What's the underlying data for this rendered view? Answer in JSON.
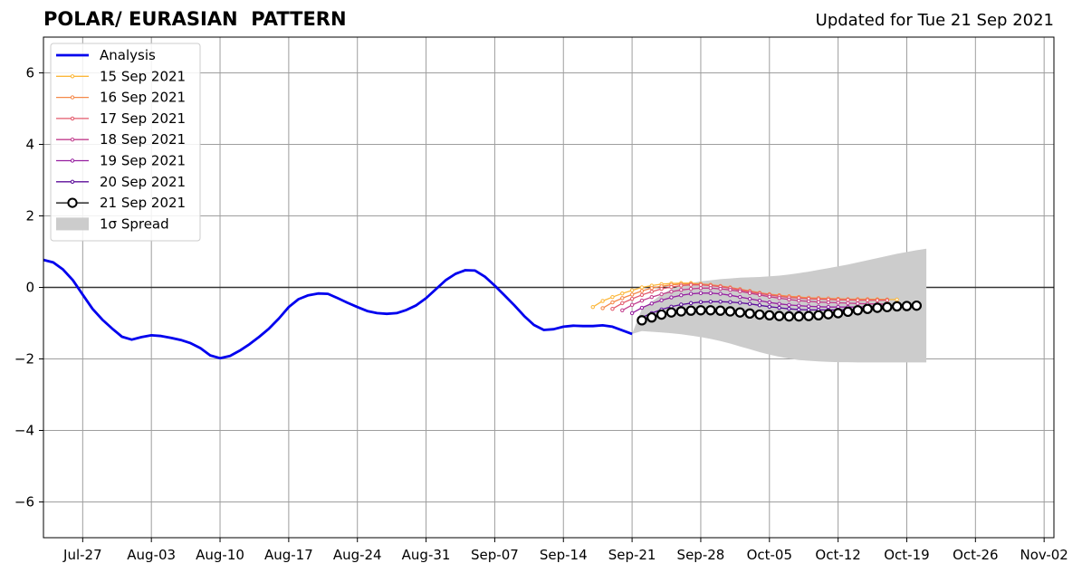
{
  "chart_data": {
    "type": "line",
    "title": "POLAR/ EURASIAN  PATTERN",
    "subtitle": "Updated for Tue 21 Sep 2021",
    "xlabel": "",
    "ylabel": "",
    "ylim": [
      -7,
      7
    ],
    "xlim": [
      "2021-07-23",
      "2021-11-03"
    ],
    "grid": true,
    "legend_position": "upper-left",
    "x_ticks": [
      "Jul-27",
      "Aug-03",
      "Aug-10",
      "Aug-17",
      "Aug-24",
      "Aug-31",
      "Sep-07",
      "Sep-14",
      "Sep-21",
      "Sep-28",
      "Oct-05",
      "Oct-12",
      "Oct-19",
      "Oct-26",
      "Nov-02"
    ],
    "y_ticks": [
      -6,
      -4,
      -2,
      0,
      2,
      4,
      6
    ],
    "series": [
      {
        "name": "Analysis",
        "color": "#0000ee",
        "style": "thick-line",
        "start_date": "2021-07-23",
        "values": [
          0.77,
          0.7,
          0.5,
          0.2,
          -0.2,
          -0.6,
          -0.9,
          -1.15,
          -1.38,
          -1.46,
          -1.39,
          -1.34,
          -1.36,
          -1.41,
          -1.47,
          -1.56,
          -1.7,
          -1.9,
          -1.98,
          -1.92,
          -1.77,
          -1.59,
          -1.38,
          -1.15,
          -0.87,
          -0.55,
          -0.33,
          -0.22,
          -0.17,
          -0.18,
          -0.3,
          -0.43,
          -0.55,
          -0.66,
          -0.72,
          -0.74,
          -0.72,
          -0.63,
          -0.5,
          -0.3,
          -0.05,
          0.2,
          0.38,
          0.48,
          0.47,
          0.3,
          0.05,
          -0.22,
          -0.5,
          -0.8,
          -1.05,
          -1.19,
          -1.17,
          -1.1,
          -1.07,
          -1.08,
          -1.08,
          -1.06,
          -1.1,
          -1.2,
          -1.3
        ]
      },
      {
        "name": "15 Sep 2021",
        "color": "#fcb73a",
        "style": "thin-dots",
        "start_date": "2021-09-17",
        "values": [
          -0.55,
          -0.38,
          -0.27,
          -0.17,
          -0.08,
          0.0,
          0.05,
          0.09,
          0.11,
          0.12,
          0.12,
          0.1,
          0.07,
          0.03,
          -0.02,
          -0.07,
          -0.12,
          -0.17,
          -0.2,
          -0.23,
          -0.25,
          -0.27,
          -0.3,
          -0.31,
          -0.32,
          -0.32,
          -0.33,
          -0.33,
          -0.33,
          -0.33,
          -0.34,
          -0.34
        ]
      },
      {
        "name": "16 Sep 2021",
        "color": "#f5894a",
        "style": "thin-dots",
        "start_date": "2021-09-18",
        "values": [
          -0.58,
          -0.42,
          -0.3,
          -0.2,
          -0.1,
          -0.02,
          0.03,
          0.07,
          0.09,
          0.1,
          0.09,
          0.07,
          0.04,
          0.0,
          -0.05,
          -0.1,
          -0.15,
          -0.19,
          -0.22,
          -0.25,
          -0.27,
          -0.29,
          -0.3,
          -0.31,
          -0.32,
          -0.33,
          -0.33,
          -0.33,
          -0.34,
          -0.34
        ]
      },
      {
        "name": "17 Sep 2021",
        "color": "#e3596b",
        "style": "thin-dots",
        "start_date": "2021-09-19",
        "values": [
          -0.6,
          -0.44,
          -0.32,
          -0.21,
          -0.12,
          -0.04,
          0.01,
          0.05,
          0.07,
          0.07,
          0.05,
          0.02,
          -0.02,
          -0.07,
          -0.12,
          -0.17,
          -0.21,
          -0.25,
          -0.28,
          -0.3,
          -0.32,
          -0.33,
          -0.34,
          -0.35,
          -0.35,
          -0.36,
          -0.36,
          -0.36,
          -0.36
        ]
      },
      {
        "name": "18 Sep 2021",
        "color": "#c23e8e",
        "style": "thin-dots",
        "start_date": "2021-09-20",
        "values": [
          -0.64,
          -0.49,
          -0.37,
          -0.27,
          -0.19,
          -0.12,
          -0.07,
          -0.04,
          -0.02,
          -0.02,
          -0.04,
          -0.07,
          -0.11,
          -0.16,
          -0.21,
          -0.26,
          -0.3,
          -0.34,
          -0.37,
          -0.39,
          -0.41,
          -0.42,
          -0.43,
          -0.44,
          -0.45,
          -0.46,
          -0.46,
          -0.47
        ]
      },
      {
        "name": "19 Sep 2021",
        "color": "#961fa0",
        "style": "thin-dots",
        "start_date": "2021-09-21",
        "values": [
          -0.72,
          -0.57,
          -0.45,
          -0.36,
          -0.28,
          -0.22,
          -0.18,
          -0.16,
          -0.16,
          -0.18,
          -0.22,
          -0.27,
          -0.32,
          -0.37,
          -0.42,
          -0.46,
          -0.49,
          -0.51,
          -0.53,
          -0.54,
          -0.55,
          -0.55,
          -0.55,
          -0.55,
          -0.54,
          -0.53,
          -0.52
        ]
      },
      {
        "name": "20 Sep 2021",
        "color": "#5c0d9a",
        "style": "thin-dots",
        "start_date": "2021-09-22",
        "values": [
          -0.84,
          -0.72,
          -0.62,
          -0.54,
          -0.48,
          -0.44,
          -0.41,
          -0.4,
          -0.4,
          -0.41,
          -0.43,
          -0.46,
          -0.5,
          -0.54,
          -0.57,
          -0.6,
          -0.62,
          -0.63,
          -0.63,
          -0.63,
          -0.63,
          -0.62,
          -0.61,
          -0.6,
          -0.59,
          -0.58
        ]
      },
      {
        "name": "21 Sep 2021",
        "color": "#000000",
        "style": "open-circles",
        "start_date": "2021-09-22",
        "values": [
          -0.92,
          -0.84,
          -0.76,
          -0.7,
          -0.67,
          -0.65,
          -0.64,
          -0.64,
          -0.65,
          -0.67,
          -0.7,
          -0.73,
          -0.76,
          -0.78,
          -0.8,
          -0.81,
          -0.81,
          -0.8,
          -0.78,
          -0.75,
          -0.72,
          -0.68,
          -0.64,
          -0.6,
          -0.57,
          -0.55,
          -0.53,
          -0.52,
          -0.51
        ]
      }
    ],
    "spread": {
      "name": "1σ Spread",
      "color": "#cccccc",
      "start_date": "2021-09-21",
      "upper": [
        -1.3,
        -0.6,
        -0.4,
        -0.2,
        -0.05,
        0.05,
        0.12,
        0.17,
        0.2,
        0.23,
        0.25,
        0.27,
        0.28,
        0.29,
        0.31,
        0.33,
        0.36,
        0.4,
        0.44,
        0.49,
        0.54,
        0.59,
        0.64,
        0.7,
        0.76,
        0.82,
        0.88,
        0.94,
        0.99,
        1.04,
        1.08
      ],
      "lower": [
        -1.3,
        -1.22,
        -1.24,
        -1.26,
        -1.28,
        -1.31,
        -1.35,
        -1.39,
        -1.44,
        -1.5,
        -1.57,
        -1.65,
        -1.73,
        -1.81,
        -1.88,
        -1.94,
        -1.99,
        -2.03,
        -2.05,
        -2.07,
        -2.08,
        -2.09,
        -2.09,
        -2.1,
        -2.1,
        -2.1,
        -2.1,
        -2.1,
        -2.1,
        -2.1,
        -2.1
      ]
    }
  }
}
